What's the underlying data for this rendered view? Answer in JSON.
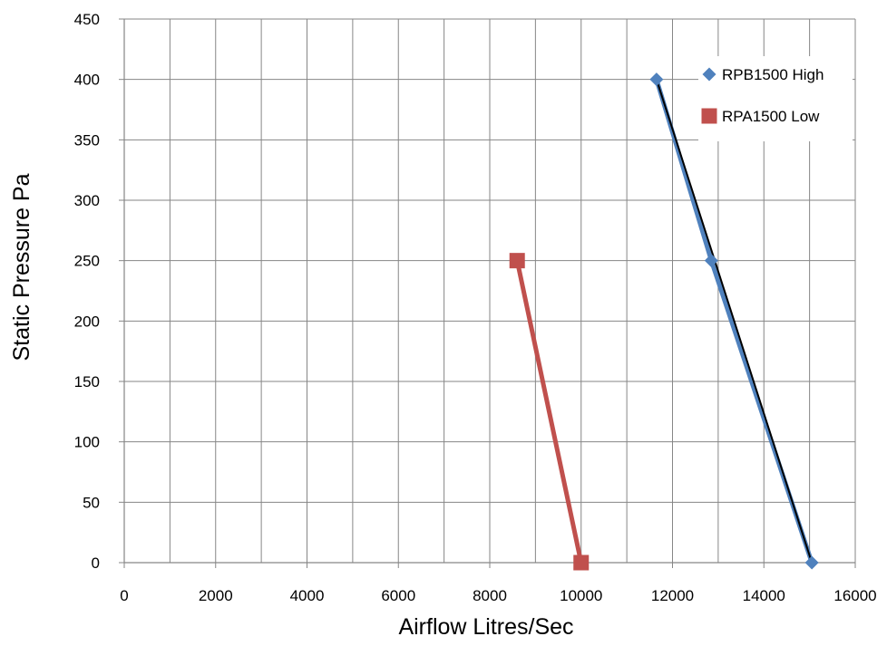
{
  "chart_data": {
    "type": "line",
    "title": "",
    "xlabel": "Airflow Litres/Sec",
    "ylabel": "Static Pressure Pa",
    "xlim": [
      0,
      16000
    ],
    "ylim": [
      0,
      450
    ],
    "x_ticks": [
      0,
      2000,
      4000,
      6000,
      8000,
      10000,
      12000,
      14000,
      16000
    ],
    "y_ticks": [
      0,
      50,
      100,
      150,
      200,
      250,
      300,
      350,
      400,
      450
    ],
    "x_minor_grid_step": 1000,
    "grid": true,
    "legend_position": "top-right",
    "series": [
      {
        "name": "RPB1500 High",
        "marker": "diamond",
        "color": "#4F81BD",
        "points": [
          {
            "x": 11650,
            "y": 400
          },
          {
            "x": 12850,
            "y": 250
          },
          {
            "x": 15050,
            "y": 0
          }
        ]
      },
      {
        "name": "RPA1500 Low",
        "marker": "square",
        "color": "#C0504D",
        "points": [
          {
            "x": 8600,
            "y": 250
          },
          {
            "x": 10000,
            "y": 0
          }
        ]
      }
    ],
    "trendline": {
      "color": "#000000",
      "points": [
        {
          "x": 11650,
          "y": 400
        },
        {
          "x": 15050,
          "y": 0
        }
      ]
    }
  }
}
